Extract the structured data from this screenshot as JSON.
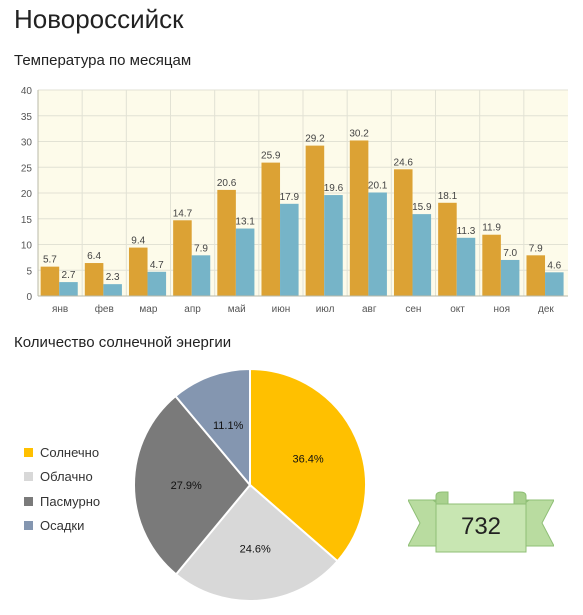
{
  "page": {
    "city": "Новороссийск",
    "temp_title": "Температура по месяцам",
    "sun_title": "Количество солнечной энергии",
    "sun_days_value": "732"
  },
  "colors": {
    "bar_series_1": "#dca234",
    "bar_series_2": "#76b4c8",
    "plot_background": "#fdfbea",
    "pie_sunny": "#ffc000",
    "pie_cloudy": "#d8d8d8",
    "pie_overcast": "#7a7a7a",
    "pie_precip": "#8496b0",
    "ribbon_fill": "#b9dca0",
    "ribbon_stroke": "#8fbf76"
  },
  "chart_data": [
    {
      "type": "bar",
      "title": "Температура по месяцам",
      "categories": [
        "янв",
        "фев",
        "мар",
        "апр",
        "май",
        "июн",
        "июл",
        "авг",
        "сен",
        "окт",
        "ноя",
        "дек"
      ],
      "series": [
        {
          "values": [
            5.7,
            6.4,
            9.4,
            14.7,
            20.6,
            25.9,
            29.2,
            30.2,
            24.6,
            18.1,
            11.9,
            7.9
          ]
        },
        {
          "values": [
            2.7,
            2.3,
            4.7,
            7.9,
            13.1,
            17.9,
            19.6,
            20.1,
            15.9,
            11.3,
            7.0,
            4.6
          ]
        }
      ],
      "data_labels": [
        [
          "5.7",
          "6.4",
          "9.4",
          "14.7",
          "20.6",
          "25.9",
          "29.2",
          "30.2",
          "24.6",
          "18.1",
          "11.9",
          "7.9"
        ],
        [
          "2.7",
          "2.3",
          "4.7",
          "7.9",
          "13.1",
          "17.9",
          "19.6",
          "20.1",
          "15.9",
          "11.3",
          "7.0",
          "4.6"
        ]
      ],
      "ylim": [
        0,
        40
      ],
      "yticks": [
        "0",
        "5",
        "10",
        "15",
        "20",
        "25",
        "30",
        "35",
        "40"
      ],
      "grid": true
    },
    {
      "type": "pie",
      "labels": [
        "Солнечно",
        "Облачно",
        "Пасмурно",
        "Осадки"
      ],
      "values": [
        36.4,
        24.6,
        27.9,
        11.1
      ],
      "value_labels": [
        "36.4%",
        "24.6%",
        "27.9%",
        "11.1%"
      ],
      "legend": "left"
    }
  ]
}
